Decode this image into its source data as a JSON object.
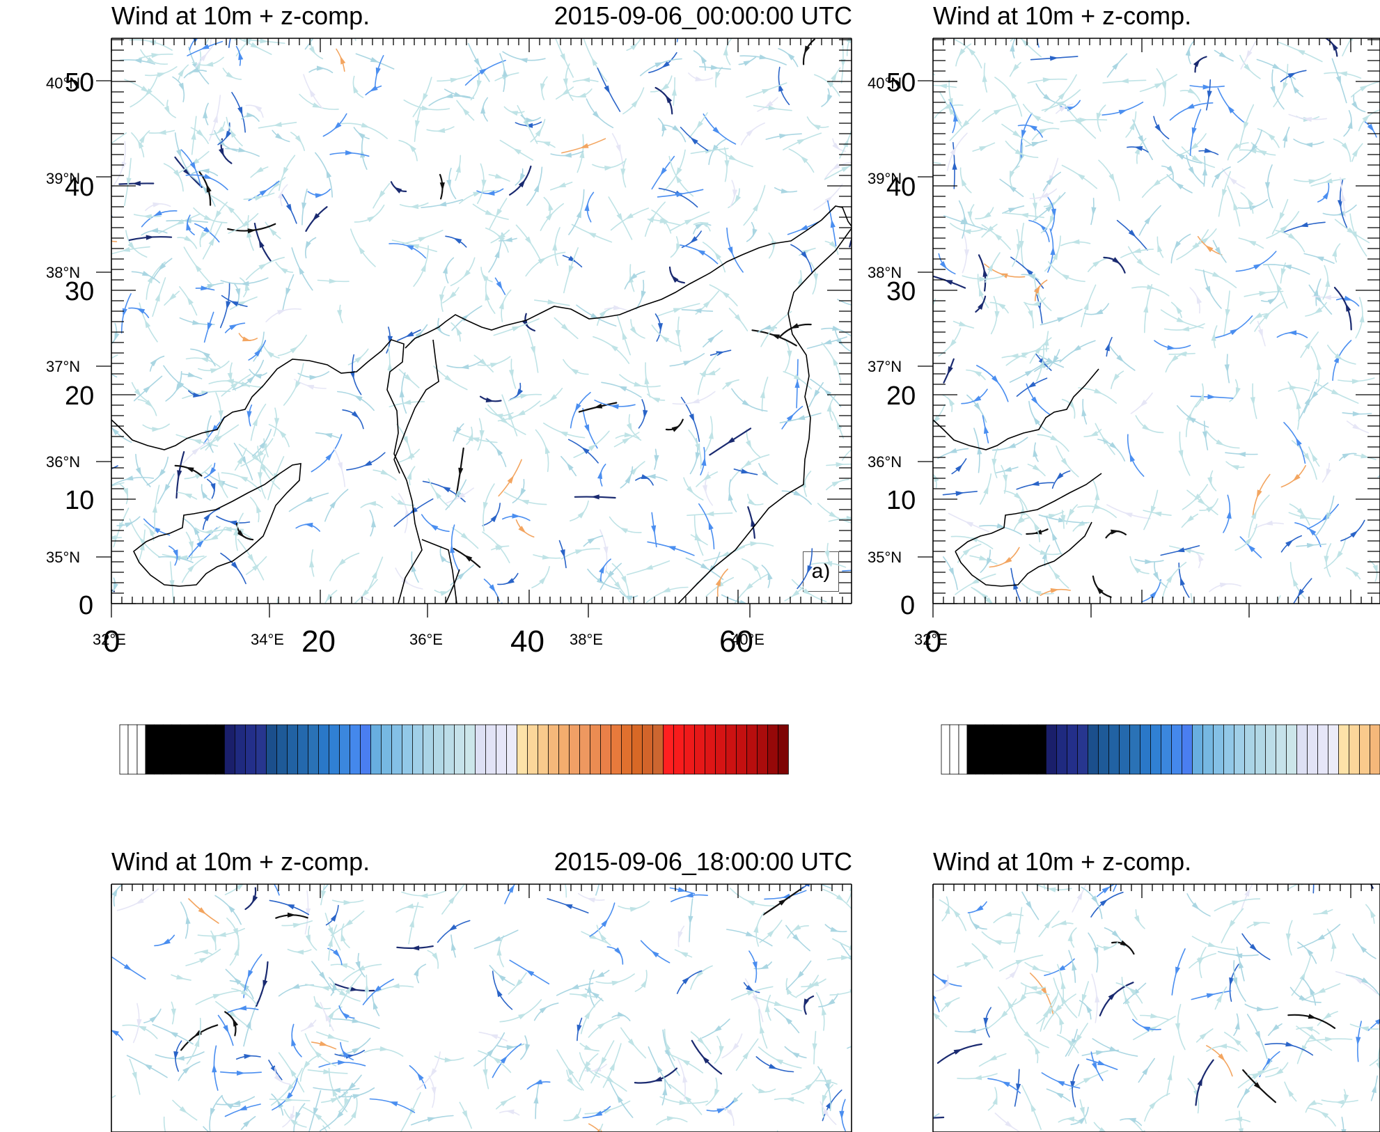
{
  "panels": [
    {
      "title_left": "Wind at 10m + z-comp.",
      "title_right": "2015-09-06_00:00:00 UTC",
      "letter": "a)"
    },
    {
      "title_left": "Wind at 10m + z-comp.",
      "title_right": ""
    },
    {
      "title_left": "Wind at 10m + z-comp.",
      "title_right": "2015-09-06_18:00:00 UTC"
    },
    {
      "title_left": "Wind at 10m + z-comp."
    }
  ],
  "lat_labels": [
    "40°N",
    "39°N",
    "38°N",
    "37°N",
    "36°N",
    "35°N"
  ],
  "lon_labels": [
    "32°E",
    "34°E",
    "36°E",
    "38°E",
    "40°E"
  ],
  "y_index_labels": [
    "50",
    "40",
    "30",
    "20",
    "10",
    "0"
  ],
  "x_index_labels": [
    "0",
    "20",
    "40",
    "60"
  ],
  "colorbar_colors": [
    "#ffffff",
    "#ffffff",
    "#ffffff",
    "#000000",
    "#000000",
    "#000000",
    "#000000",
    "#000000",
    "#000000",
    "#000000",
    "#000000",
    "#000000",
    "#1a1f6b",
    "#1f2a80",
    "#232f8a",
    "#27368f",
    "#1b4f8c",
    "#1e5a98",
    "#2162a3",
    "#2469ad",
    "#2a72b6",
    "#2a78c8",
    "#3080d4",
    "#3b87de",
    "#4488ec",
    "#4a7ef0",
    "#68aee0",
    "#76b8e2",
    "#84c0e6",
    "#92c8e8",
    "#a0cfe8",
    "#aad4e6",
    "#b2d8e6",
    "#bcdde8",
    "#c6e2ea",
    "#cce6ea",
    "#dde0f4",
    "#e2e3f6",
    "#e6e6f8",
    "#ebebf9",
    "#fde2a8",
    "#fbd69a",
    "#f9ca8c",
    "#f5b87a",
    "#f3ad6e",
    "#f0a066",
    "#ee9860",
    "#eb8c52",
    "#ea8048",
    "#e87a3c",
    "#e0702e",
    "#d86826",
    "#d2642a",
    "#cc6630",
    "#ff2020",
    "#f81c1c",
    "#ef1a1a",
    "#e61818",
    "#de1616",
    "#d61414",
    "#cc1212",
    "#c41010",
    "#b80e0e",
    "#aa0c0c",
    "#960808",
    "#7e0404"
  ],
  "stream_colors": [
    "#bfe3e6",
    "#aad6e2",
    "#4a8ef0",
    "#2a64c8",
    "#1a2a70",
    "#111111",
    "#f3a560",
    "#e6e6f6"
  ],
  "coastline_color": "#000000"
}
